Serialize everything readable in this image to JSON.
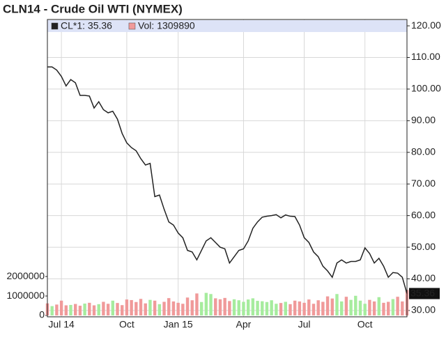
{
  "chart_data": {
    "type": "line",
    "title": "CLN14 - Crude Oil WTI (NYMEX)",
    "categories": [
      null,
      null,
      null,
      "Jul 14",
      null,
      null,
      null,
      null,
      null,
      null,
      null,
      null,
      null,
      null,
      null,
      null,
      null,
      "Oct",
      null,
      null,
      null,
      null,
      null,
      null,
      null,
      null,
      null,
      null,
      "Jan 15",
      null,
      null,
      null,
      null,
      null,
      null,
      null,
      null,
      null,
      null,
      null,
      null,
      null,
      "Apr",
      null,
      null,
      null,
      null,
      null,
      null,
      null,
      null,
      null,
      null,
      null,
      null,
      "Jul",
      null,
      null,
      null,
      null,
      null,
      null,
      null,
      null,
      null,
      null,
      null,
      null,
      "Oct",
      null,
      null,
      null,
      null,
      null,
      null,
      null,
      null,
      null
    ],
    "series": [
      {
        "name": "CL*1: 35.36",
        "color": "#222222",
        "values": [
          107,
          107,
          106,
          104,
          101,
          103,
          102,
          98,
          98,
          97.8,
          94,
          96,
          93.5,
          92.5,
          93,
          90.5,
          86,
          83,
          81.5,
          80.5,
          78,
          76,
          76.5,
          66,
          66.5,
          62,
          58,
          57,
          54.5,
          53,
          49,
          48.5,
          46,
          49,
          52,
          53,
          51.5,
          50,
          49.5,
          45,
          47,
          49,
          49.5,
          52,
          56,
          58,
          59.5,
          59.8,
          60,
          60.3,
          59.3,
          60.2,
          59.8,
          59.7,
          57,
          53,
          51.5,
          48.5,
          47,
          44,
          42.5,
          40.5,
          45,
          46,
          45,
          45.5,
          45.5,
          46,
          49.8,
          48,
          45,
          46.5,
          44,
          40.5,
          42,
          41.8,
          40.5,
          35.36
        ]
      },
      {
        "name": "Vol: 1309890",
        "type": "bar",
        "axis": "y2",
        "color": "#f09a9a",
        "up_color": "#a6ec9e",
        "values": [
          620000,
          480000,
          560000,
          760000,
          520000,
          540000,
          590000,
          500000,
          610000,
          650000,
          520000,
          580000,
          700000,
          600000,
          760000,
          640000,
          530000,
          820000,
          790000,
          690000,
          850000,
          620000,
          800000,
          760000,
          580000,
          700000,
          890000,
          720000,
          650000,
          600000,
          920000,
          780000,
          1130000,
          690000,
          1160000,
          1100000,
          880000,
          830000,
          900000,
          740000,
          830000,
          780000,
          700000,
          820000,
          880000,
          750000,
          730000,
          690000,
          780000,
          600000,
          640000,
          700000,
          580000,
          760000,
          720000,
          650000,
          820000,
          600000,
          780000,
          700000,
          980000,
          870000,
          1100000,
          720000,
          960000,
          800000,
          1010000,
          760000,
          600000,
          800000,
          720000,
          940000,
          650000,
          700000,
          840000,
          960000,
          720000,
          1309890
        ]
      }
    ],
    "ylim": [
      28,
      122
    ],
    "yticks": [
      {
        "value": 30,
        "label": "30.00"
      },
      {
        "value": 40,
        "label": "40.00"
      },
      {
        "value": 50,
        "label": "50.00"
      },
      {
        "value": 60,
        "label": "60.00"
      },
      {
        "value": 70,
        "label": "70.00"
      },
      {
        "value": 80,
        "label": "80.00"
      },
      {
        "value": 90,
        "label": "90.00"
      },
      {
        "value": 100,
        "label": "100.00"
      },
      {
        "value": 110,
        "label": "110.00"
      },
      {
        "value": 120,
        "label": "120.00"
      }
    ],
    "y2lim": [
      -70000,
      15200000
    ],
    "y2ticks": [
      0,
      1000000,
      2000000
    ],
    "grid": true,
    "legend_color": "#dde3f7"
  }
}
